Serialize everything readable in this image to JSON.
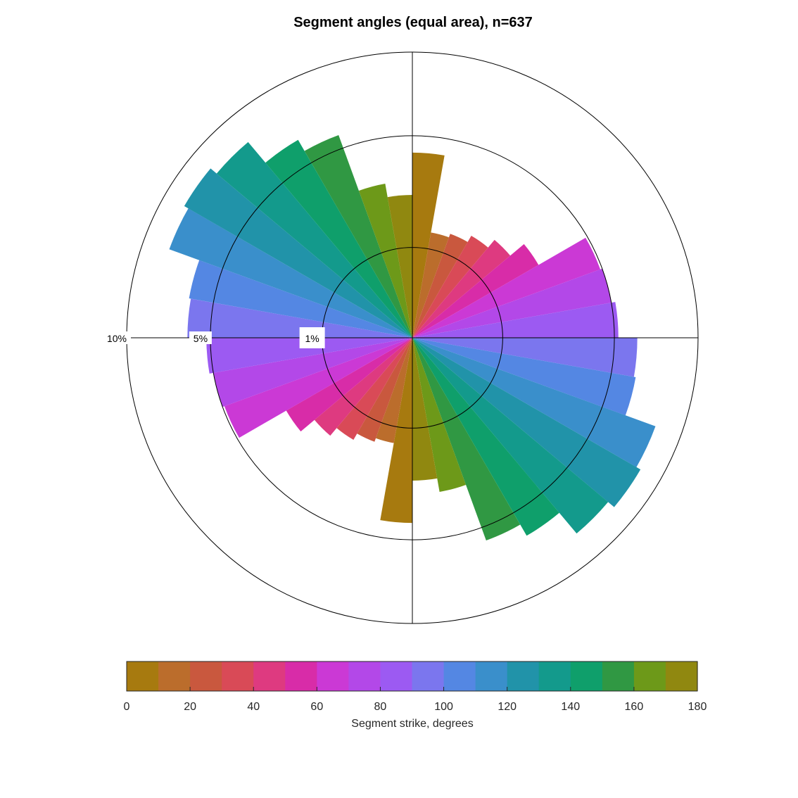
{
  "chart_data": {
    "type": "rose",
    "title": "Segment angles (equal area), n=637",
    "scale": "equal-area",
    "bin_width_deg": 10,
    "bin_starts_deg": [
      0,
      10,
      20,
      30,
      40,
      50,
      60,
      70,
      80,
      90,
      100,
      110,
      120,
      130,
      140,
      150,
      160,
      170
    ],
    "bin_colors": [
      "#a77a0f",
      "#bb6d2c",
      "#c9583e",
      "#d94a57",
      "#de3a80",
      "#d82ca8",
      "#cb39d5",
      "#b348e8",
      "#9c5af2",
      "#7b76ee",
      "#5487e3",
      "#3a8fcb",
      "#2193a9",
      "#139a8c",
      "#0f9f6b",
      "#309843",
      "#6d9919",
      "#908810"
    ],
    "percent_values": [
      4.2,
      1.4,
      1.5,
      1.7,
      2.0,
      2.6,
      4.9,
      5.0,
      5.2,
      6.2,
      6.3,
      8.2,
      8.5,
      8.0,
      6.4,
      5.7,
      3.0,
      2.5
    ],
    "ring_percents": [
      1,
      5,
      10
    ],
    "ring_labels": [
      "1%",
      "5%",
      "10%"
    ],
    "colorbar": {
      "ticks": [
        "0",
        "20",
        "40",
        "60",
        "80",
        "100",
        "120",
        "140",
        "160",
        "180"
      ],
      "range": [
        0,
        180
      ],
      "label": "Segment strike, degrees"
    }
  }
}
